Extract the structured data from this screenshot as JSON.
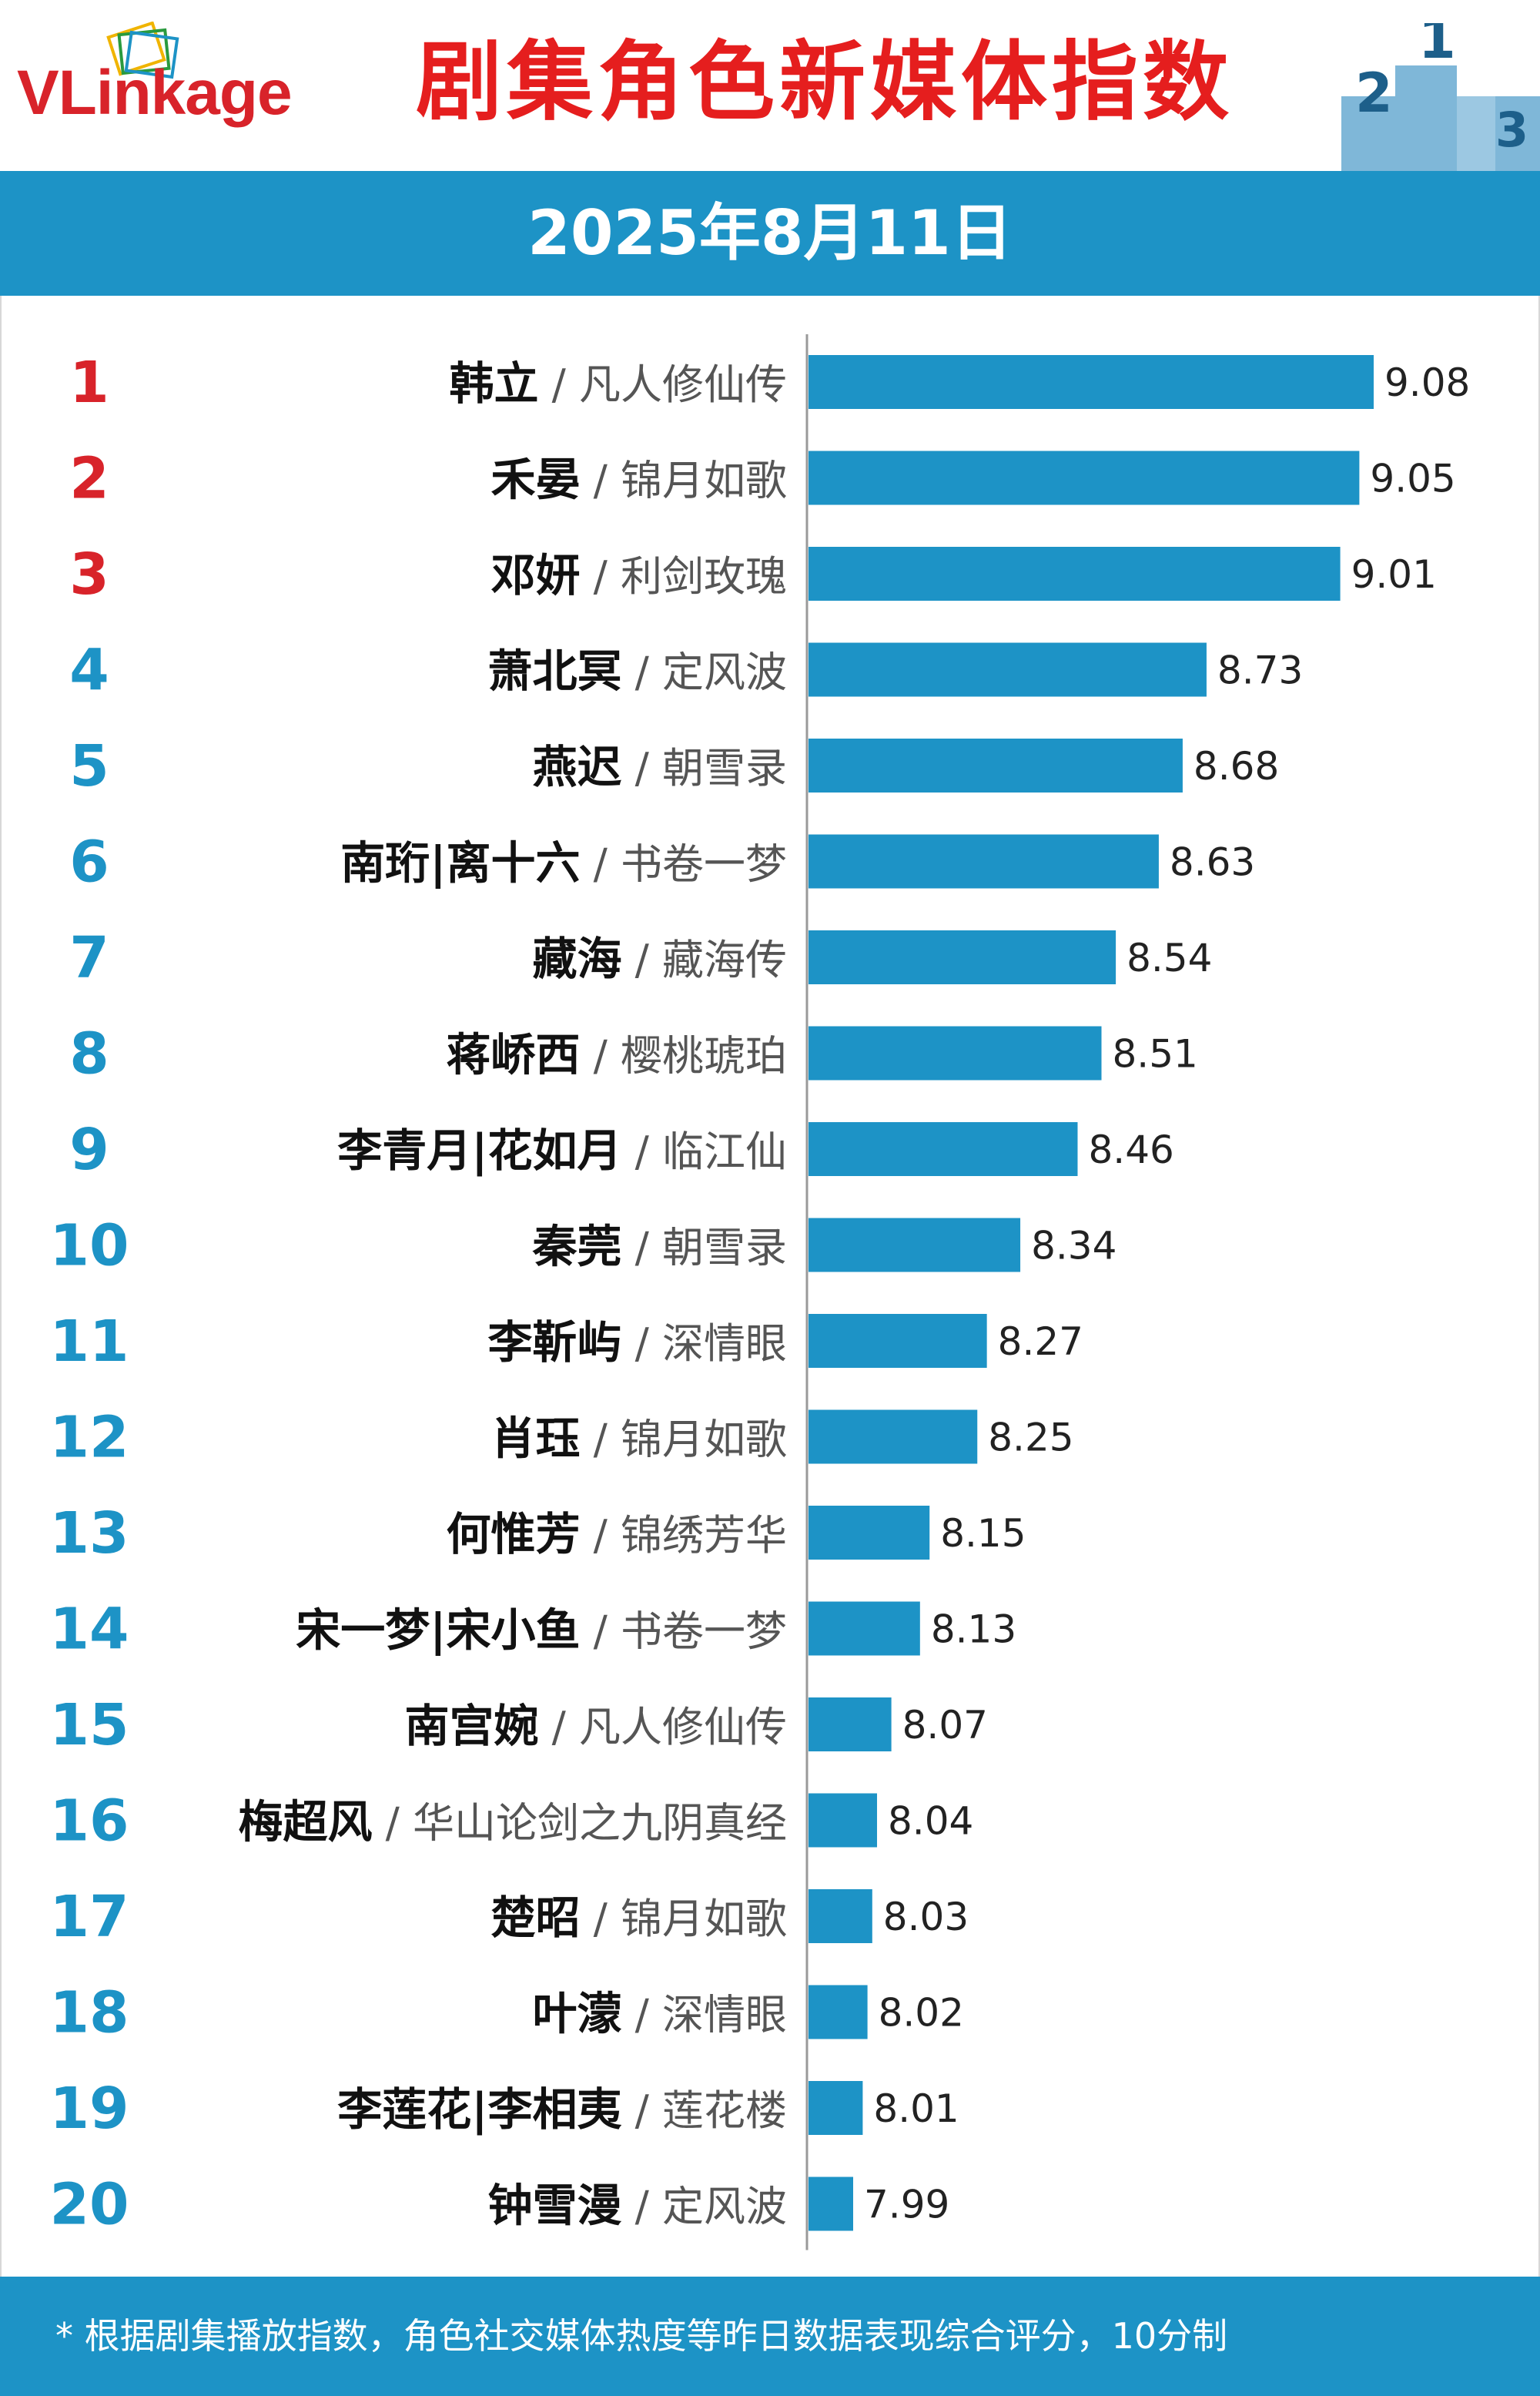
{
  "brand": {
    "logo_text_1": "V",
    "logo_text_2": "Link",
    "logo_text_3": "age"
  },
  "header": {
    "title": "剧集角色新媒体指数",
    "podium_labels": [
      "2",
      "1",
      "3"
    ]
  },
  "date": "2025年8月11日",
  "colors": {
    "accent": "#1d93c6",
    "title_red": "#e51e1e",
    "top_rank": "#d8232a",
    "rank_blue": "#1d93c6",
    "bar": "#1d93c6"
  },
  "chart_data": {
    "type": "bar",
    "orientation": "horizontal",
    "rows": [
      {
        "rank": "1",
        "role": "韩立",
        "drama": "凡人修仙传",
        "value": 9.08
      },
      {
        "rank": "2",
        "role": "禾晏",
        "drama": "锦月如歌",
        "value": 9.05
      },
      {
        "rank": "3",
        "role": "邓妍",
        "drama": "利剑玫瑰",
        "value": 9.01
      },
      {
        "rank": "4",
        "role": "萧北冥",
        "drama": "定风波",
        "value": 8.73
      },
      {
        "rank": "5",
        "role": "燕迟",
        "drama": "朝雪录",
        "value": 8.68
      },
      {
        "rank": "6",
        "role": "南珩|离十六",
        "drama": "书卷一梦",
        "value": 8.63
      },
      {
        "rank": "7",
        "role": "藏海",
        "drama": "藏海传",
        "value": 8.54
      },
      {
        "rank": "8",
        "role": "蒋峤西",
        "drama": "樱桃琥珀",
        "value": 8.51
      },
      {
        "rank": "9",
        "role": "李青月|花如月",
        "drama": "临江仙",
        "value": 8.46
      },
      {
        "rank": "10",
        "role": "秦莞",
        "drama": "朝雪录",
        "value": 8.34
      },
      {
        "rank": "11",
        "role": "李靳屿",
        "drama": "深情眼",
        "value": 8.27
      },
      {
        "rank": "12",
        "role": "肖珏",
        "drama": "锦月如歌",
        "value": 8.25
      },
      {
        "rank": "13",
        "role": "何惟芳",
        "drama": "锦绣芳华",
        "value": 8.15
      },
      {
        "rank": "14",
        "role": "宋一梦|宋小鱼",
        "drama": "书卷一梦",
        "value": 8.13
      },
      {
        "rank": "15",
        "role": "南宫婉",
        "drama": "凡人修仙传",
        "value": 8.07
      },
      {
        "rank": "16",
        "role": "梅超风",
        "drama": "华山论剑之九阴真经",
        "value": 8.04
      },
      {
        "rank": "17",
        "role": "楚昭",
        "drama": "锦月如歌",
        "value": 8.03
      },
      {
        "rank": "18",
        "role": "叶濛",
        "drama": "深情眼",
        "value": 8.02
      },
      {
        "rank": "19",
        "role": "李莲花|李相夷",
        "drama": "莲花楼",
        "value": 8.01
      },
      {
        "rank": "20",
        "role": "钟雪漫",
        "drama": "定风波",
        "value": 7.99
      }
    ],
    "separator": " / ",
    "value_format": "2 decimals"
  },
  "footer": {
    "note": "* 根据剧集播放指数，角色社交媒体热度等昨日数据表现综合评分，10分制"
  }
}
